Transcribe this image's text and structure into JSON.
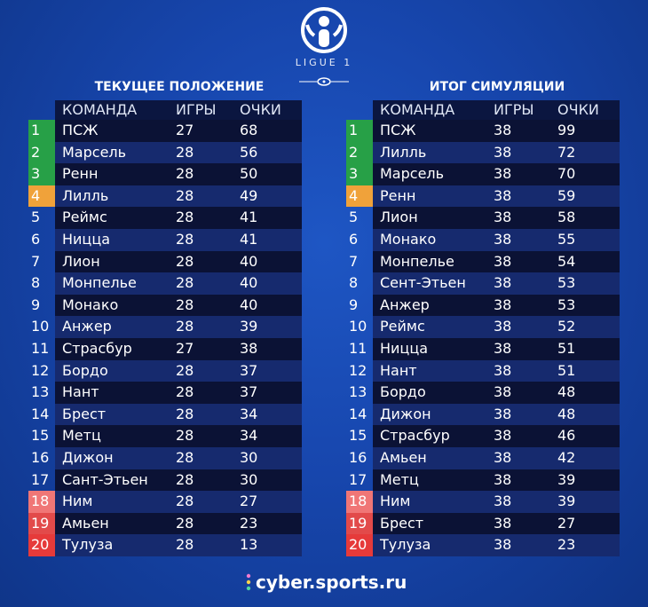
{
  "logo": {
    "text": "LIGUE 1"
  },
  "brand": {
    "text": "cyber.sports.ru"
  },
  "tables": [
    {
      "title": "ТЕКУЩЕЕ ПОЛОЖЕНИЕ",
      "headers": {
        "team": "КОМАНДА",
        "games": "ИГРЫ",
        "points": "ОЧКИ"
      },
      "rows": [
        {
          "pos": "1",
          "team": "ПСЖ",
          "games": "27",
          "points": "68",
          "zone": "green"
        },
        {
          "pos": "2",
          "team": "Марсель",
          "games": "28",
          "points": "56",
          "zone": "green"
        },
        {
          "pos": "3",
          "team": "Ренн",
          "games": "28",
          "points": "50",
          "zone": "green"
        },
        {
          "pos": "4",
          "team": "Лилль",
          "games": "28",
          "points": "49",
          "zone": "orange"
        },
        {
          "pos": "5",
          "team": "Реймс",
          "games": "28",
          "points": "41",
          "zone": ""
        },
        {
          "pos": "6",
          "team": "Ницца",
          "games": "28",
          "points": "41",
          "zone": ""
        },
        {
          "pos": "7",
          "team": "Лион",
          "games": "28",
          "points": "40",
          "zone": ""
        },
        {
          "pos": "8",
          "team": "Монпелье",
          "games": "28",
          "points": "40",
          "zone": ""
        },
        {
          "pos": "9",
          "team": "Монако",
          "games": "28",
          "points": "40",
          "zone": ""
        },
        {
          "pos": "10",
          "team": "Анжер",
          "games": "28",
          "points": "39",
          "zone": ""
        },
        {
          "pos": "11",
          "team": "Страсбур",
          "games": "27",
          "points": "38",
          "zone": ""
        },
        {
          "pos": "12",
          "team": "Бордо",
          "games": "28",
          "points": "37",
          "zone": ""
        },
        {
          "pos": "13",
          "team": "Нант",
          "games": "28",
          "points": "37",
          "zone": ""
        },
        {
          "pos": "14",
          "team": "Брест",
          "games": "28",
          "points": "34",
          "zone": ""
        },
        {
          "pos": "15",
          "team": "Метц",
          "games": "28",
          "points": "34",
          "zone": ""
        },
        {
          "pos": "16",
          "team": "Дижон",
          "games": "28",
          "points": "30",
          "zone": ""
        },
        {
          "pos": "17",
          "team": "Сант-Этьен",
          "games": "28",
          "points": "30",
          "zone": ""
        },
        {
          "pos": "18",
          "team": "Ним",
          "games": "28",
          "points": "27",
          "zone": "red1"
        },
        {
          "pos": "19",
          "team": "Амьен",
          "games": "28",
          "points": "23",
          "zone": "red2"
        },
        {
          "pos": "20",
          "team": "Тулуза",
          "games": "28",
          "points": "13",
          "zone": "red3"
        }
      ]
    },
    {
      "title": "ИТОГ СИМУЛЯЦИИ",
      "headers": {
        "team": "КОМАНДА",
        "games": "ИГРЫ",
        "points": "ОЧКИ"
      },
      "rows": [
        {
          "pos": "1",
          "team": "ПСЖ",
          "games": "38",
          "points": "99",
          "zone": "green"
        },
        {
          "pos": "2",
          "team": "Лилль",
          "games": "38",
          "points": "72",
          "zone": "green"
        },
        {
          "pos": "3",
          "team": "Марсель",
          "games": "38",
          "points": "70",
          "zone": "green"
        },
        {
          "pos": "4",
          "team": "Ренн",
          "games": "38",
          "points": "59",
          "zone": "orange"
        },
        {
          "pos": "5",
          "team": "Лион",
          "games": "38",
          "points": "58",
          "zone": ""
        },
        {
          "pos": "6",
          "team": "Монако",
          "games": "38",
          "points": "55",
          "zone": ""
        },
        {
          "pos": "7",
          "team": "Монпелье",
          "games": "38",
          "points": "54",
          "zone": ""
        },
        {
          "pos": "8",
          "team": "Сент-Этьен",
          "games": "38",
          "points": "53",
          "zone": ""
        },
        {
          "pos": "9",
          "team": "Анжер",
          "games": "38",
          "points": "53",
          "zone": ""
        },
        {
          "pos": "10",
          "team": "Реймс",
          "games": "38",
          "points": "52",
          "zone": ""
        },
        {
          "pos": "11",
          "team": "Ницца",
          "games": "38",
          "points": "51",
          "zone": ""
        },
        {
          "pos": "12",
          "team": "Нант",
          "games": "38",
          "points": "51",
          "zone": ""
        },
        {
          "pos": "13",
          "team": "Бордо",
          "games": "38",
          "points": "48",
          "zone": ""
        },
        {
          "pos": "14",
          "team": "Дижон",
          "games": "38",
          "points": "48",
          "zone": ""
        },
        {
          "pos": "15",
          "team": "Страсбур",
          "games": "38",
          "points": "46",
          "zone": ""
        },
        {
          "pos": "16",
          "team": "Амьен",
          "games": "38",
          "points": "42",
          "zone": ""
        },
        {
          "pos": "17",
          "team": "Метц",
          "games": "38",
          "points": "39",
          "zone": ""
        },
        {
          "pos": "18",
          "team": "Ним",
          "games": "38",
          "points": "39",
          "zone": "red1"
        },
        {
          "pos": "19",
          "team": "Брест",
          "games": "38",
          "points": "27",
          "zone": "red2"
        },
        {
          "pos": "20",
          "team": "Тулуза",
          "games": "38",
          "points": "23",
          "zone": "red3"
        }
      ]
    }
  ]
}
